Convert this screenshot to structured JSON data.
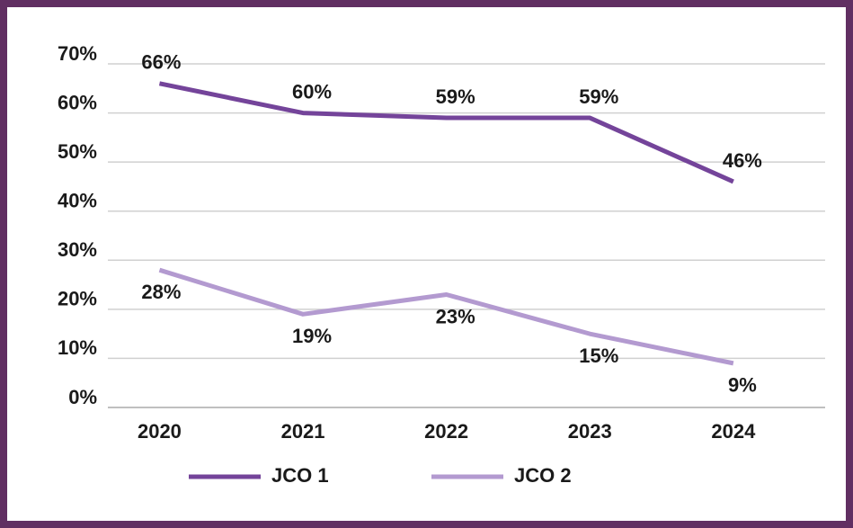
{
  "chart_data": {
    "type": "line",
    "categories": [
      "2020",
      "2021",
      "2022",
      "2023",
      "2024"
    ],
    "series": [
      {
        "name": "JCO 1",
        "color": "#74449a",
        "values": [
          66,
          60,
          59,
          59,
          46
        ],
        "value_labels": [
          "66%",
          "60%",
          "59%",
          "59%",
          "46%"
        ]
      },
      {
        "name": "JCO 2",
        "color": "#b39ad0",
        "values": [
          28,
          19,
          23,
          15,
          9
        ],
        "value_labels": [
          "28%",
          "19%",
          "23%",
          "15%",
          "9%"
        ]
      }
    ],
    "ylim": [
      0,
      70
    ],
    "yticks": [
      {
        "value": 0,
        "label": "0%"
      },
      {
        "value": 10,
        "label": "10%"
      },
      {
        "value": 20,
        "label": "20%"
      },
      {
        "value": 30,
        "label": "30%"
      },
      {
        "value": 40,
        "label": "40%"
      },
      {
        "value": 50,
        "label": "50%"
      },
      {
        "value": 60,
        "label": "60%"
      },
      {
        "value": 70,
        "label": "70%"
      }
    ],
    "grid": true,
    "legend": "bottom"
  }
}
